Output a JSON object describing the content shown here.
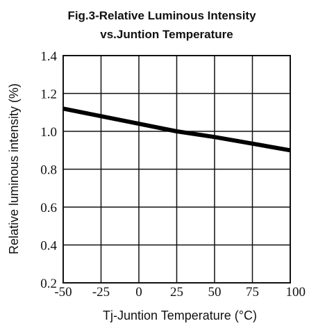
{
  "chart_data": {
    "type": "line",
    "title_line1": "Fig.3-Relative Luminous Intensity",
    "title_line2": "vs.Juntion Temperature",
    "xlabel": "Tj-Juntion Temperature (°C)",
    "ylabel": "Relative luminous intensity (%)",
    "xlim": [
      -50,
      100
    ],
    "ylim": [
      0.2,
      1.4
    ],
    "xticks": [
      -50,
      -25,
      0,
      25,
      50,
      75,
      100
    ],
    "yticks": [
      "0.2",
      "0.4",
      "0.6",
      "0.8",
      "1.0",
      "1.2",
      "1.4"
    ],
    "grid": true,
    "series": [
      {
        "x": [
          -50,
          -25,
          0,
          25,
          50,
          75,
          100
        ],
        "y": [
          1.12,
          1.08,
          1.04,
          1.0,
          0.97,
          0.935,
          0.9
        ]
      }
    ]
  }
}
